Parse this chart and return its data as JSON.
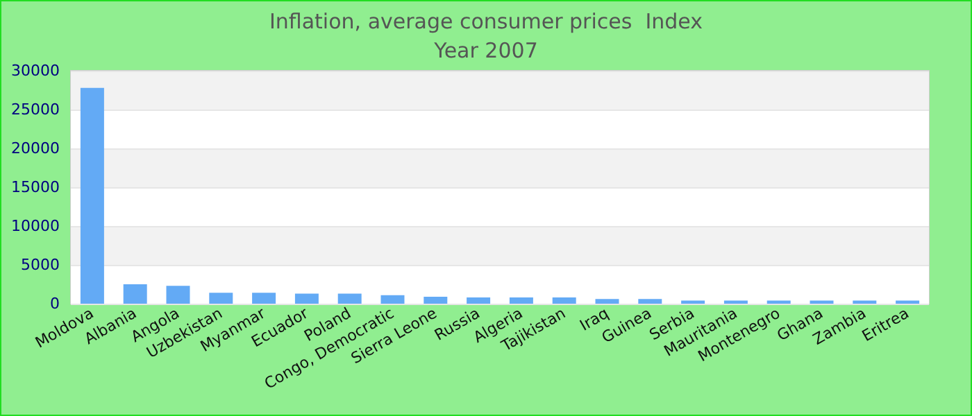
{
  "chart_data": {
    "type": "bar",
    "title": "Inflation, average consumer prices  Index",
    "subtitle": "Year 2007",
    "categories": [
      "Moldova",
      "Albania",
      "Angola",
      "Uzbekistan",
      "Myanmar",
      "Ecuador",
      "Poland",
      "Congo, Democratic",
      "Sierra Leone",
      "Russia",
      "Algeria",
      "Tajikistan",
      "Iraq",
      "Guinea",
      "Serbia",
      "Mauritania",
      "Montenegro",
      "Ghana",
      "Zambia",
      "Eritrea"
    ],
    "values": [
      27800,
      2500,
      2300,
      1400,
      1400,
      1300,
      1300,
      1100,
      900,
      800,
      800,
      800,
      600,
      600,
      400,
      400,
      400,
      400,
      400,
      400
    ],
    "color": "#63aaf5",
    "ylim": [
      0,
      30000
    ],
    "yticks": [
      0,
      5000,
      10000,
      15000,
      20000,
      25000,
      30000
    ],
    "grid": "y"
  }
}
